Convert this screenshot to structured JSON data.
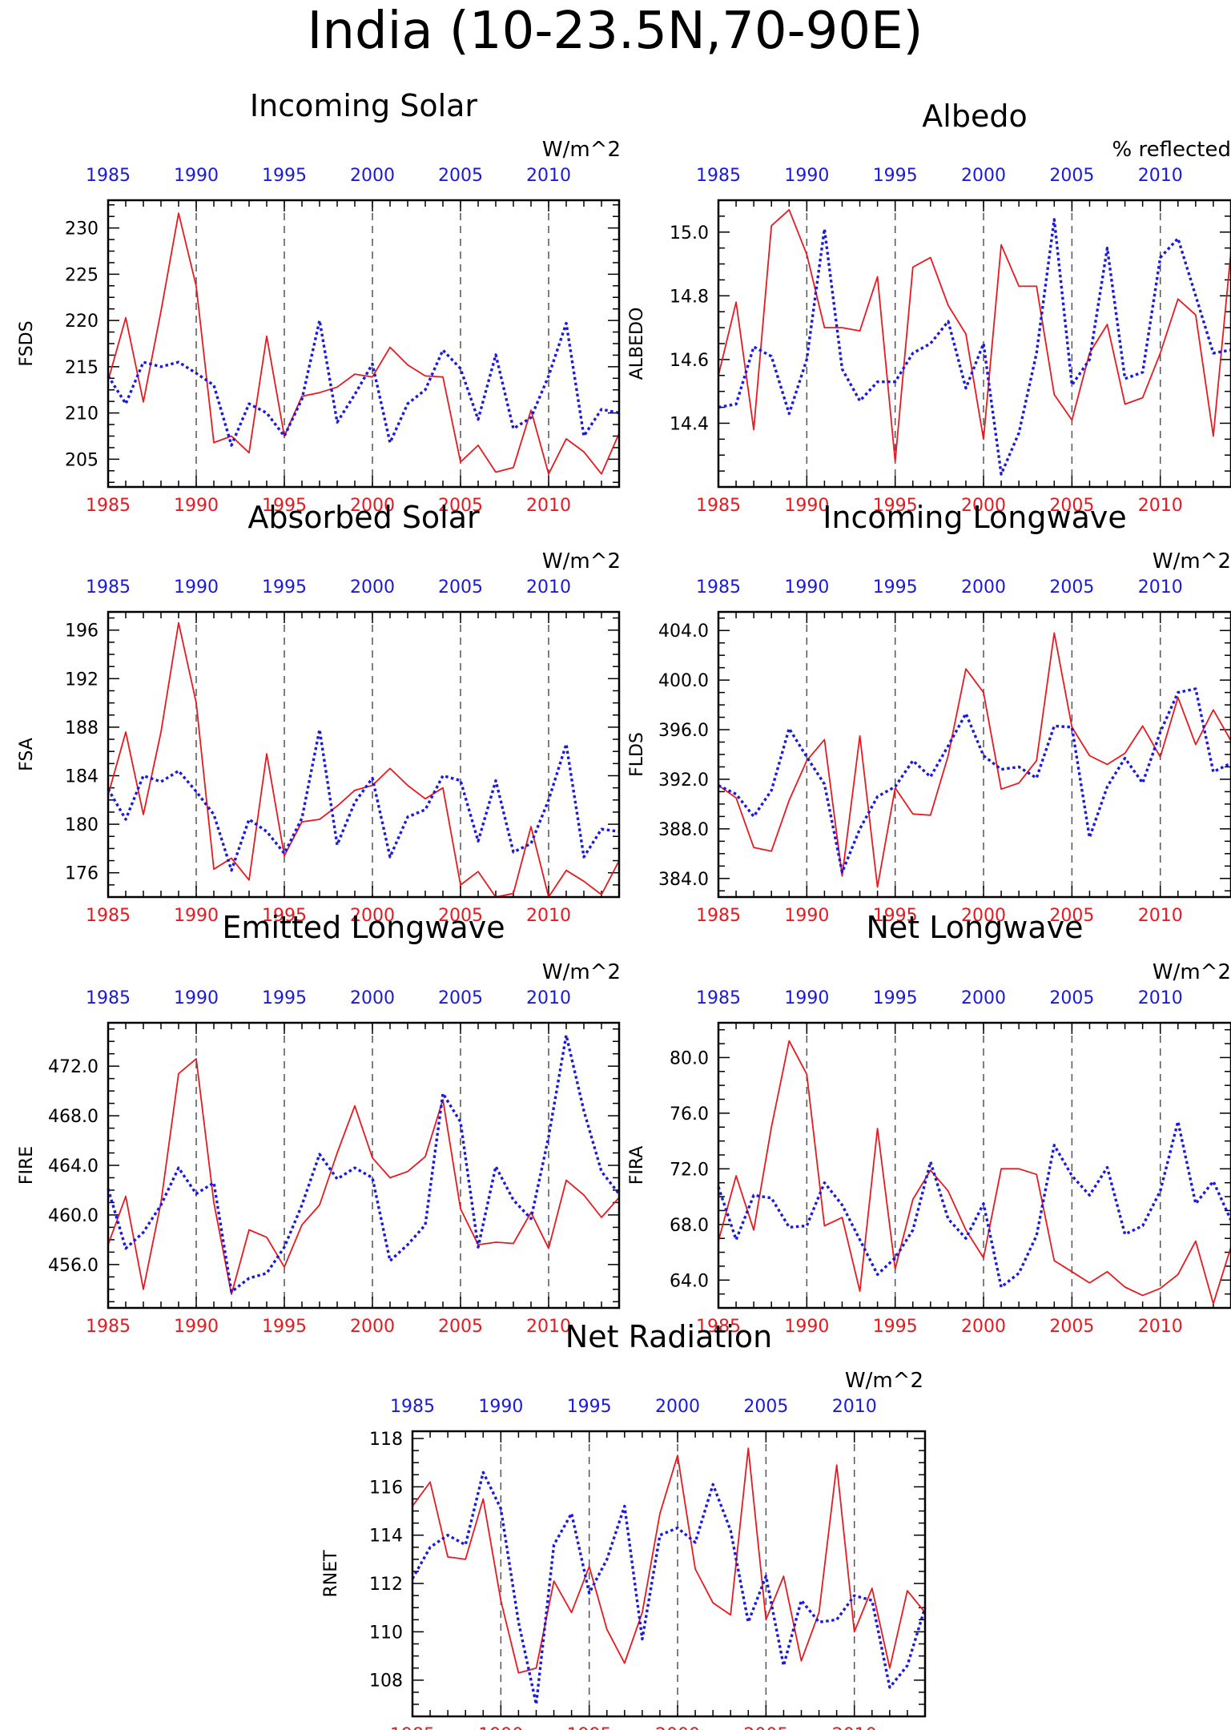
{
  "page": {
    "title": "India (10-23.5N,70-90E)"
  },
  "colors": {
    "red": "#e8191f",
    "blue": "#1a1adc",
    "axis": "#000000",
    "grid": "#555555"
  },
  "years": [
    1985,
    1986,
    1987,
    1988,
    1989,
    1990,
    1991,
    1992,
    1993,
    1994,
    1995,
    1996,
    1997,
    1998,
    1999,
    2000,
    2001,
    2002,
    2003,
    2004,
    2005,
    2006,
    2007,
    2008,
    2009,
    2010,
    2011,
    2012,
    2013,
    2014
  ],
  "x_tick_labels": [
    "1985",
    "1990",
    "1995",
    "2000",
    "2005",
    "2010"
  ],
  "chart_data": [
    {
      "type": "line",
      "title": "Incoming Solar",
      "ylabel": "FSDS",
      "units": "W/m^2",
      "ylim": [
        202,
        233
      ],
      "yticks": [
        205,
        210,
        215,
        220,
        225,
        230
      ],
      "yticklabels": [
        "205",
        "210",
        "215",
        "220",
        "225",
        "230"
      ],
      "x_range": [
        1985,
        2014
      ],
      "vlines": [
        1990,
        1995,
        2000,
        2005,
        2010
      ],
      "series": [
        {
          "color": "red",
          "style": "solid",
          "values": [
            213.5,
            220.3,
            211.2,
            221.0,
            231.6,
            223.7,
            206.8,
            207.5,
            205.7,
            218.3,
            207.5,
            211.8,
            212.2,
            212.8,
            214.2,
            213.9,
            217.1,
            215.2,
            214.0,
            213.9,
            204.7,
            206.5,
            203.6,
            204.1,
            210.3,
            203.4,
            207.2,
            205.8,
            203.4,
            207.8
          ]
        },
        {
          "color": "blue",
          "style": "dotted",
          "values": [
            214.0,
            211.0,
            215.5,
            215.0,
            215.5,
            214.3,
            213.0,
            206.5,
            211.0,
            210.0,
            207.5,
            211.5,
            220.0,
            209.0,
            212.0,
            215.3,
            206.8,
            211.0,
            212.5,
            216.8,
            214.8,
            209.3,
            216.3,
            208.3,
            209.5,
            214.0,
            219.7,
            207.5,
            210.4,
            210.0
          ]
        }
      ]
    },
    {
      "type": "line",
      "title": "Albedo",
      "ylabel": "ALBEDO",
      "units": "% reflected",
      "ylim": [
        14.2,
        15.1
      ],
      "yticks": [
        14.4,
        14.6,
        14.8,
        15.0
      ],
      "yticklabels": [
        "14.4",
        "14.6",
        "14.8",
        "15.0"
      ],
      "x_range": [
        1985,
        2014
      ],
      "vlines": [
        1990,
        1995,
        2000,
        2005,
        2010
      ],
      "series": [
        {
          "color": "red",
          "style": "solid",
          "values": [
            14.55,
            14.78,
            14.38,
            15.02,
            15.07,
            14.93,
            14.7,
            14.7,
            14.69,
            14.86,
            14.28,
            14.89,
            14.92,
            14.77,
            14.68,
            14.35,
            14.96,
            14.83,
            14.83,
            14.49,
            14.41,
            14.62,
            14.71,
            14.46,
            14.48,
            14.62,
            14.79,
            14.74,
            14.36,
            14.94
          ]
        },
        {
          "color": "blue",
          "style": "dotted",
          "values": [
            14.45,
            14.46,
            14.64,
            14.61,
            14.43,
            14.6,
            15.01,
            14.57,
            14.47,
            14.53,
            14.53,
            14.62,
            14.65,
            14.72,
            14.51,
            14.65,
            14.24,
            14.37,
            14.62,
            15.04,
            14.52,
            14.6,
            14.95,
            14.54,
            14.56,
            14.92,
            14.98,
            14.8,
            14.62,
            14.63
          ]
        }
      ]
    },
    {
      "type": "line",
      "title": "Absorbed Solar",
      "ylabel": "FSA",
      "units": "W/m^2",
      "ylim": [
        174,
        197.5
      ],
      "yticks": [
        176,
        180,
        184,
        188,
        192,
        196
      ],
      "yticklabels": [
        "176",
        "180",
        "184",
        "188",
        "192",
        "196"
      ],
      "x_range": [
        1985,
        2014
      ],
      "vlines": [
        1990,
        1995,
        2000,
        2005,
        2010
      ],
      "series": [
        {
          "color": "red",
          "style": "solid",
          "values": [
            182.4,
            187.6,
            180.8,
            187.6,
            196.6,
            190.0,
            176.3,
            177.2,
            175.4,
            185.8,
            177.4,
            180.2,
            180.4,
            181.5,
            182.8,
            183.2,
            184.6,
            183.2,
            182.1,
            183.0,
            175.0,
            176.1,
            173.5,
            174.3,
            179.8,
            173.6,
            176.2,
            175.3,
            174.2,
            177.0
          ]
        },
        {
          "color": "blue",
          "style": "dotted",
          "values": [
            182.9,
            180.4,
            184.0,
            183.5,
            184.4,
            182.7,
            180.8,
            176.2,
            180.4,
            179.4,
            177.6,
            180.5,
            187.8,
            178.3,
            181.8,
            183.8,
            177.3,
            180.6,
            181.2,
            184.0,
            183.6,
            178.6,
            183.6,
            177.7,
            178.4,
            182.0,
            186.6,
            177.3,
            179.6,
            179.4
          ]
        }
      ]
    },
    {
      "type": "line",
      "title": "Incoming Longwave",
      "ylabel": "FLDS",
      "units": "W/m^2",
      "ylim": [
        382.5,
        405.5
      ],
      "yticks": [
        384,
        388,
        392,
        396,
        400,
        404
      ],
      "yticklabels": [
        "384.0",
        "388.0",
        "392.0",
        "396.0",
        "400.0",
        "404.0"
      ],
      "x_range": [
        1985,
        2014
      ],
      "vlines": [
        1990,
        1995,
        2000,
        2005,
        2010
      ],
      "series": [
        {
          "color": "red",
          "style": "solid",
          "values": [
            391.5,
            390.5,
            386.5,
            386.2,
            390.3,
            393.5,
            395.2,
            384.2,
            395.5,
            383.3,
            391.3,
            389.2,
            389.1,
            393.9,
            400.9,
            399.0,
            391.2,
            391.7,
            393.5,
            403.8,
            396.2,
            393.9,
            393.2,
            394.1,
            396.3,
            393.8,
            398.6,
            394.8,
            397.6,
            395.1
          ]
        },
        {
          "color": "blue",
          "style": "dotted",
          "values": [
            391.5,
            390.8,
            389.0,
            391.1,
            396.1,
            393.8,
            391.6,
            384.5,
            388.0,
            390.6,
            391.4,
            393.5,
            392.2,
            394.7,
            397.3,
            393.9,
            392.8,
            393.0,
            392.1,
            396.3,
            396.2,
            387.3,
            391.4,
            393.7,
            391.7,
            395.8,
            399.0,
            399.3,
            392.6,
            393.3
          ]
        }
      ]
    },
    {
      "type": "line",
      "title": "Emitted Longwave",
      "ylabel": "FIRE",
      "units": "W/m^2",
      "ylim": [
        452.5,
        475.5
      ],
      "yticks": [
        456,
        460,
        464,
        468,
        472
      ],
      "yticklabels": [
        "456.0",
        "460.0",
        "464.0",
        "468.0",
        "472.0"
      ],
      "x_range": [
        1985,
        2014
      ],
      "vlines": [
        1990,
        1995,
        2000,
        2005,
        2010
      ],
      "series": [
        {
          "color": "red",
          "style": "solid",
          "values": [
            457.6,
            461.5,
            454.0,
            461.0,
            471.4,
            472.6,
            461.0,
            453.6,
            458.8,
            458.2,
            455.8,
            459.2,
            460.8,
            465.0,
            468.8,
            464.6,
            463.0,
            463.5,
            464.7,
            469.3,
            460.5,
            457.6,
            457.8,
            457.7,
            460.2,
            457.3,
            462.8,
            461.6,
            459.8,
            461.4
          ]
        },
        {
          "color": "blue",
          "style": "dotted",
          "values": [
            462.1,
            457.3,
            458.6,
            460.8,
            463.8,
            461.7,
            462.6,
            453.8,
            454.9,
            455.3,
            457.4,
            460.8,
            464.9,
            462.9,
            463.8,
            463.0,
            456.3,
            457.6,
            459.2,
            469.8,
            467.5,
            457.4,
            463.9,
            461.2,
            459.7,
            466.3,
            474.5,
            468.4,
            463.5,
            461.7
          ]
        }
      ]
    },
    {
      "type": "line",
      "title": "Net Longwave",
      "ylabel": "FIRA",
      "units": "W/m^2",
      "ylim": [
        62,
        82.5
      ],
      "yticks": [
        64,
        68,
        72,
        76,
        80
      ],
      "yticklabels": [
        "64.0",
        "68.0",
        "72.0",
        "76.0",
        "80.0"
      ],
      "x_range": [
        1985,
        2014
      ],
      "vlines": [
        1990,
        1995,
        2000,
        2005,
        2010
      ],
      "series": [
        {
          "color": "red",
          "style": "solid",
          "values": [
            66.8,
            71.5,
            67.6,
            75.0,
            81.2,
            78.8,
            67.9,
            68.5,
            63.2,
            74.9,
            64.8,
            69.8,
            71.9,
            70.4,
            67.6,
            65.6,
            72.0,
            72.0,
            71.6,
            65.4,
            64.6,
            63.8,
            64.6,
            63.5,
            62.9,
            63.4,
            64.4,
            66.8,
            62.3,
            66.4
          ]
        },
        {
          "color": "blue",
          "style": "dotted",
          "values": [
            70.7,
            66.9,
            70.1,
            69.9,
            67.8,
            67.9,
            71.0,
            69.4,
            66.9,
            64.4,
            65.6,
            67.6,
            72.5,
            68.4,
            67.0,
            69.5,
            63.5,
            64.5,
            67.2,
            73.7,
            71.5,
            70.1,
            72.1,
            67.3,
            67.9,
            70.4,
            75.4,
            69.5,
            71.1,
            68.3
          ]
        }
      ]
    },
    {
      "type": "line",
      "title": "Net Radiation",
      "ylabel": "RNET",
      "units": "W/m^2",
      "ylim": [
        106.5,
        118.3
      ],
      "yticks": [
        108,
        110,
        112,
        114,
        116,
        118
      ],
      "yticklabels": [
        "108",
        "110",
        "112",
        "114",
        "116",
        "118"
      ],
      "x_range": [
        1985,
        2014
      ],
      "vlines": [
        1990,
        1995,
        2000,
        2005,
        2010
      ],
      "series": [
        {
          "color": "red",
          "style": "solid",
          "values": [
            115.2,
            116.2,
            113.1,
            113.0,
            115.5,
            111.3,
            108.3,
            108.5,
            112.1,
            110.8,
            112.7,
            110.1,
            108.7,
            110.8,
            114.9,
            117.3,
            112.6,
            111.2,
            110.7,
            117.6,
            110.5,
            112.3,
            108.8,
            110.8,
            116.9,
            110.0,
            111.8,
            108.5,
            111.7,
            110.8
          ]
        },
        {
          "color": "blue",
          "style": "dotted",
          "values": [
            112.2,
            113.5,
            114.0,
            113.6,
            116.6,
            115.1,
            110.4,
            107.0,
            113.6,
            114.9,
            111.6,
            113.0,
            115.2,
            109.7,
            114.0,
            114.3,
            113.7,
            116.1,
            114.2,
            110.4,
            112.3,
            108.6,
            111.3,
            110.4,
            110.5,
            111.5,
            111.3,
            107.7,
            108.6,
            111.0
          ]
        }
      ]
    }
  ]
}
